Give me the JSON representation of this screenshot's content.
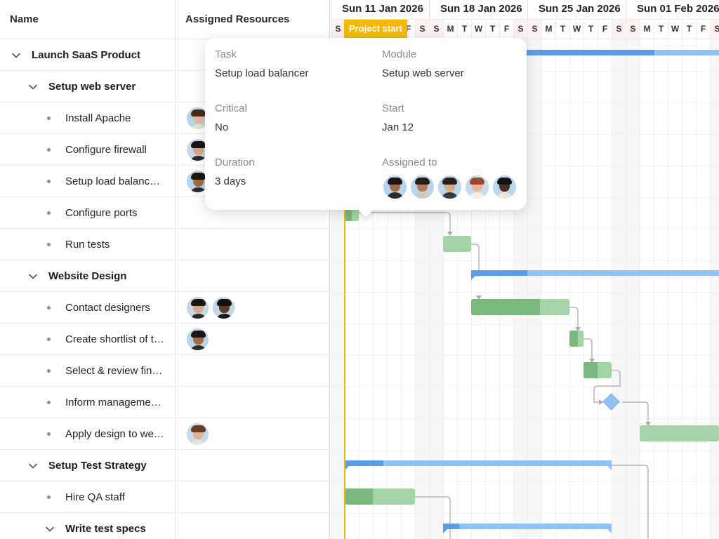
{
  "grid": {
    "columns": {
      "name": "Name",
      "resources": "Assigned Resources"
    },
    "rows": [
      {
        "label": "Launch SaaS Product",
        "level": 0,
        "type": "parent",
        "avatars": []
      },
      {
        "label": "Setup web server",
        "level": 1,
        "type": "parent",
        "avatars": []
      },
      {
        "label": "Install Apache",
        "level": 2,
        "type": "leaf",
        "avatars": [
          "woman-short-hair"
        ]
      },
      {
        "label": "Configure firewall",
        "level": 2,
        "type": "leaf",
        "avatars": [
          "woman-long-dark-hair"
        ]
      },
      {
        "label": "Setup load balanc…",
        "level": 2,
        "type": "leaf",
        "avatars": [
          "man-beard"
        ]
      },
      {
        "label": "Configure ports",
        "level": 2,
        "type": "leaf",
        "avatars": []
      },
      {
        "label": "Run tests",
        "level": 2,
        "type": "leaf",
        "avatars": []
      },
      {
        "label": "Website Design",
        "level": 1,
        "type": "parent",
        "avatars": []
      },
      {
        "label": "Contact designers",
        "level": 2,
        "type": "leaf",
        "avatars": [
          "woman-long-dark-hair",
          "man-black-cap"
        ]
      },
      {
        "label": "Create shortlist of t…",
        "level": 2,
        "type": "leaf",
        "avatars": [
          "man-beard"
        ]
      },
      {
        "label": "Select & review fin…",
        "level": 2,
        "type": "leaf",
        "avatars": []
      },
      {
        "label": "Inform manageme…",
        "level": 2,
        "type": "leaf",
        "avatars": []
      },
      {
        "label": "Apply design to we…",
        "level": 2,
        "type": "leaf",
        "avatars": [
          "woman-brown-hair"
        ]
      },
      {
        "label": "Setup Test Strategy",
        "level": 1,
        "type": "parent",
        "avatars": []
      },
      {
        "label": "Hire QA staff",
        "level": 2,
        "type": "leaf",
        "avatars": []
      },
      {
        "label": "Write test specs",
        "level": 2,
        "type": "parent",
        "avatars": []
      }
    ]
  },
  "timeline": {
    "weeks": [
      "Sun 11 Jan 2026",
      "Sun 18 Jan 2026",
      "Sun 25 Jan 2026",
      "Sun 01 Feb 2026"
    ],
    "days": [
      "S",
      "M",
      "T",
      "W",
      "T",
      "F",
      "S",
      "S",
      "M",
      "T",
      "W",
      "T",
      "F",
      "S",
      "S",
      "M",
      "T",
      "W",
      "T",
      "F",
      "S",
      "S",
      "M",
      "T",
      "W",
      "T",
      "F",
      "S"
    ],
    "project_start_label": "Project start",
    "weekend_color": "#f6f6f6",
    "task_color": "#a5d3a8",
    "task_done_color": "#7ab87d",
    "summary_color": "#90c2f3",
    "summary_done_color": "#5a9de6",
    "project_line_color": "#f5b800"
  },
  "tooltip": {
    "task_label": "Task",
    "task_value": "Setup load balancer",
    "module_label": "Module",
    "module_value": "Setup web server",
    "critical_label": "Critical",
    "critical_value": "No",
    "start_label": "Start",
    "start_value": "Jan 12",
    "duration_label": "Duration",
    "duration_value": "3 days",
    "assigned_label": "Assigned to",
    "assigned_avatars": [
      "man-beard",
      "man-bald-beard",
      "man-dark-hair",
      "woman-red-hair",
      "man-black"
    ]
  }
}
